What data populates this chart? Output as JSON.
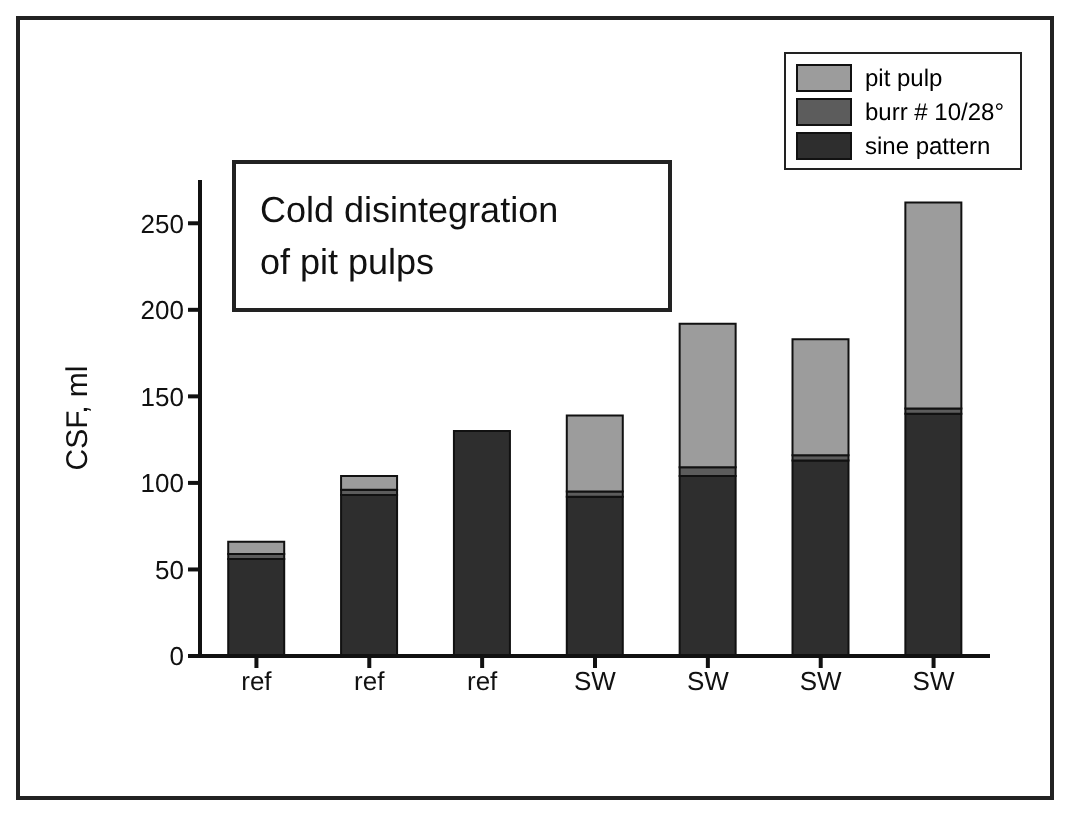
{
  "chart_data": {
    "type": "bar",
    "title": "Cold disintegration\nof pit pulps",
    "ylabel": "CSF, ml",
    "categories": [
      "ref",
      "ref",
      "ref",
      "SW",
      "SW",
      "SW",
      "SW"
    ],
    "stacked": true,
    "series": [
      {
        "name": "sine pattern",
        "color": "#2e2e2e",
        "values": [
          56,
          93,
          130,
          92,
          104,
          113,
          140
        ]
      },
      {
        "name": "burr # 10/28°",
        "color": "#5c5c5c",
        "values": [
          3,
          3,
          0,
          3,
          5,
          3,
          3
        ]
      },
      {
        "name": "pit pulp",
        "color": "#9c9c9c",
        "values": [
          7,
          8,
          0,
          44,
          83,
          67,
          119
        ]
      }
    ],
    "ylim": [
      0,
      275
    ],
    "yticks": [
      0,
      50,
      100,
      150,
      200,
      250
    ],
    "legend": "top right"
  }
}
